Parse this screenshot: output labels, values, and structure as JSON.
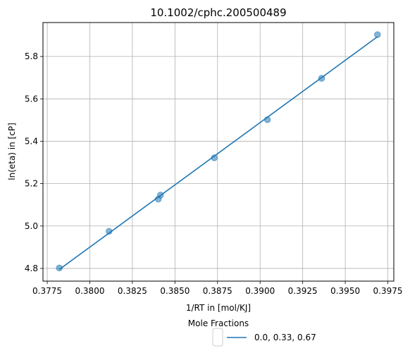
{
  "chart_data": {
    "type": "scatter",
    "title": "10.1002/cphc.200500489",
    "xlabel": "1/RT in [mol/KJ]",
    "ylabel": "ln(eta) in [cP]",
    "xlim": [
      0.37725,
      0.39785
    ],
    "ylim": [
      4.74,
      5.96
    ],
    "xticks": [
      0.3775,
      0.38,
      0.3825,
      0.385,
      0.3875,
      0.39,
      0.3925,
      0.395,
      0.3975
    ],
    "xtick_labels": [
      "0.3775",
      "0.3800",
      "0.3825",
      "0.3850",
      "0.3875",
      "0.3900",
      "0.3925",
      "0.3950",
      "0.3975"
    ],
    "yticks": [
      4.8,
      5.0,
      5.2,
      5.4,
      5.6,
      5.8
    ],
    "ytick_labels": [
      "4.8",
      "5.0",
      "5.2",
      "5.4",
      "5.6",
      "5.8"
    ],
    "grid": true,
    "legend": {
      "title": "Mole Fractions",
      "placement": "below",
      "entries": [
        "0.0, 0.33, 0.67"
      ]
    },
    "series": [
      {
        "name": "0.0, 0.33, 0.67",
        "color": "#1f77b4",
        "points": [
          [
            0.37821,
            4.802
          ],
          [
            0.38113,
            4.975
          ],
          [
            0.38402,
            5.127
          ],
          [
            0.38415,
            5.146
          ],
          [
            0.38731,
            5.322
          ],
          [
            0.39043,
            5.502
          ],
          [
            0.39361,
            5.697
          ],
          [
            0.39689,
            5.903
          ]
        ],
        "fit_line": [
          [
            0.37821,
            4.795
          ],
          [
            0.39689,
            5.893
          ]
        ]
      }
    ]
  }
}
